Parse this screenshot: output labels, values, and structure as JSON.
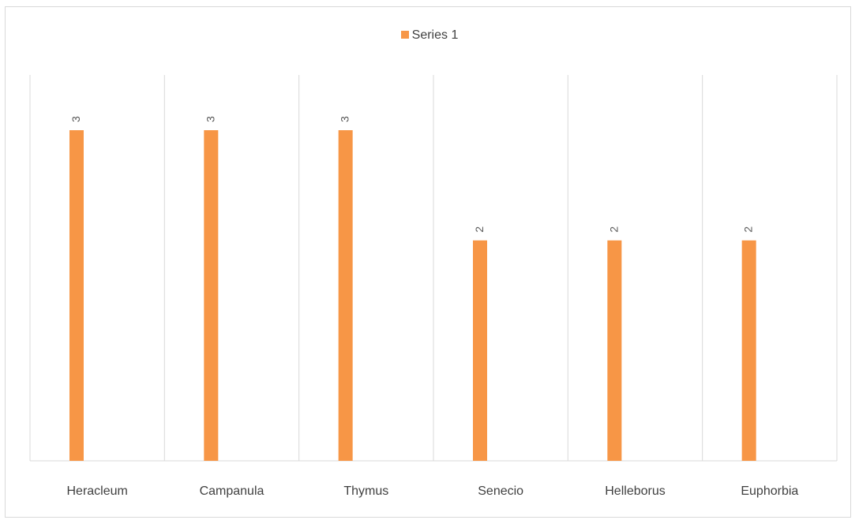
{
  "chart_data": {
    "type": "bar",
    "categories": [
      "Heracleum",
      "Campanula",
      "Thymus",
      "Senecio",
      "Helleborus",
      "Euphorbia"
    ],
    "series": [
      {
        "name": "Series 1",
        "values": [
          3,
          3,
          3,
          2,
          2,
          2
        ],
        "color": "#f79646"
      }
    ],
    "title": "",
    "xlabel": "",
    "ylabel": "",
    "ylim": [
      0,
      3.5
    ],
    "grid": "vertical category separators",
    "legend": "top-center",
    "data_labels": [
      "3",
      "3",
      "3",
      "2",
      "2",
      "2"
    ]
  }
}
